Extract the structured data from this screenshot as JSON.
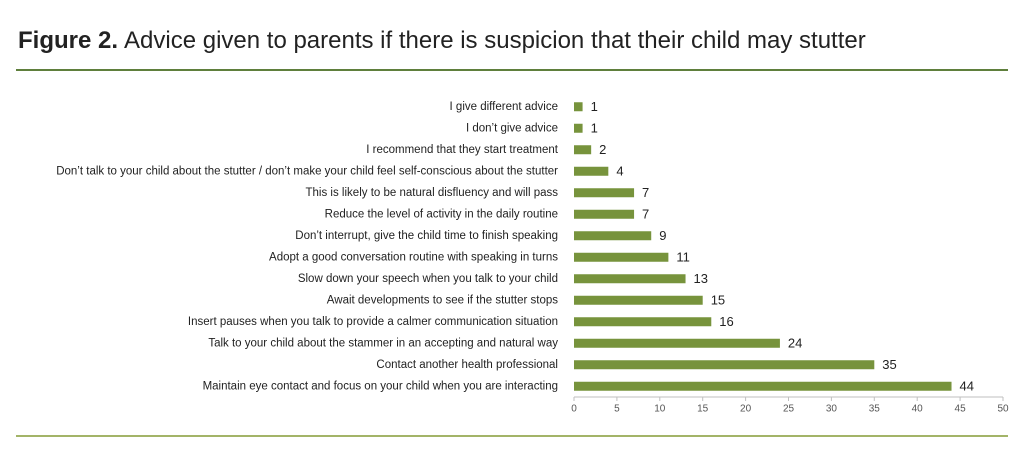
{
  "chart_data": {
    "type": "bar",
    "orientation": "horizontal",
    "title_label": "Figure 2.",
    "title": "Advice given to parents if there is suspicion that their child may stutter",
    "categories": [
      "I give different advice",
      "I don’t give advice",
      "I recommend that they start treatment",
      "Don’t talk to your child about the stutter / don’t make your child feel self-conscious about the stutter",
      "This is likely to be natural disfluency and will pass",
      "Reduce the level of activity in the daily routine",
      "Don’t interrupt, give the child time to finish speaking",
      "Adopt a good conversation routine with speaking in turns",
      "Slow down your speech when you talk to your child",
      "Await developments to see if the stutter stops",
      "Insert pauses when you talk to provide a calmer communication situation",
      "Talk to your child about the stammer in an accepting and natural way",
      "Contact another health professional",
      "Maintain eye contact and focus on your child when you are interacting"
    ],
    "values": [
      1,
      1,
      2,
      4,
      7,
      7,
      9,
      11,
      13,
      15,
      16,
      24,
      35,
      44
    ],
    "color": "#77933c",
    "xlim": [
      0,
      50
    ],
    "xticks": [
      0,
      5,
      10,
      15,
      20,
      25,
      30,
      35,
      40,
      45,
      50
    ]
  }
}
